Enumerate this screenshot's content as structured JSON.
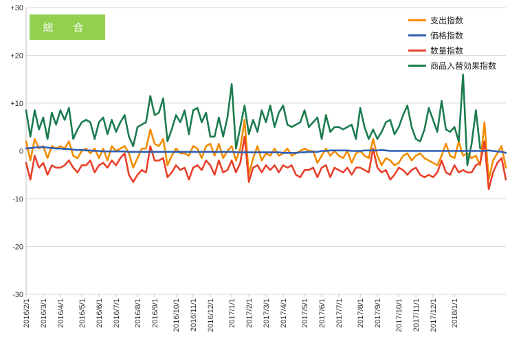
{
  "chart_data": {
    "type": "line",
    "title": "",
    "badge_label": "総 合",
    "xlabel": "",
    "ylabel": "",
    "ylim": [
      -30,
      30
    ],
    "y_ticks": [
      30,
      20,
      10,
      0,
      -10,
      -20,
      -30
    ],
    "y_tick_labels": [
      "+30",
      "+20",
      "+10",
      "0",
      "-10",
      "-20",
      "-30"
    ],
    "x_tick_labels": [
      "2016/2/1",
      "2016/3/1",
      "2016/4/1",
      "2016/5/1",
      "2016/6/1",
      "2016/7/1",
      "2016/8/1",
      "2016/9/1",
      "2016/10/1",
      "2016/11/1",
      "2016/12/1",
      "2017/1/1",
      "2017/2/1",
      "2017/3/1",
      "2017/4/1",
      "2017/5/1",
      "2017/6/1",
      "2017/7/1",
      "2017/8/1",
      "2017/9/1",
      "2017/10/1",
      "2017/11/1",
      "2017/12/1",
      "2018/1/1"
    ],
    "x_tick_week_index": [
      0,
      4,
      8,
      13,
      17,
      21,
      26,
      30,
      35,
      39,
      43,
      48,
      52,
      56,
      60,
      65,
      69,
      73,
      78,
      82,
      87,
      91,
      95,
      100
    ],
    "grid": "horizontal",
    "legend_position": "top-right",
    "series": [
      {
        "name": "支出指数",
        "color": "#f28c00",
        "values": [
          2.0,
          -2.0,
          2.5,
          0.5,
          1.0,
          -1.5,
          1.0,
          0.5,
          1.0,
          0.5,
          2.0,
          -1.0,
          -1.5,
          0.0,
          0.5,
          -0.5,
          0.5,
          -1.5,
          0.5,
          -2.0,
          1.0,
          0.0,
          0.5,
          1.0,
          -0.5,
          -3.5,
          -1.5,
          0.5,
          0.5,
          4.5,
          1.5,
          1.0,
          2.5,
          -3.0,
          -1.0,
          0.5,
          -0.5,
          -0.5,
          -1.0,
          1.0,
          0.5,
          -1.5,
          1.0,
          1.5,
          -1.0,
          1.5,
          -1.5,
          0.0,
          1.0,
          -2.0,
          0.5,
          6.5,
          -5.0,
          -1.5,
          1.0,
          -2.0,
          -0.5,
          -1.0,
          0.5,
          -1.0,
          -0.5,
          0.5,
          -1.0,
          -0.5,
          0.0,
          0.5,
          0.0,
          0.0,
          -2.5,
          -1.0,
          0.5,
          -1.0,
          0.0,
          -1.0,
          -1.5,
          0.0,
          -2.5,
          -0.5,
          0.0,
          -1.0,
          -1.5,
          2.5,
          -1.0,
          -3.0,
          -1.5,
          -2.0,
          -3.0,
          -2.5,
          -1.0,
          -0.5,
          -2.0,
          -1.0,
          -0.5,
          -1.5,
          -2.0,
          -2.5,
          -3.0,
          -1.0,
          1.5,
          -1.0,
          -1.5,
          2.0,
          -1.0,
          -0.5,
          -1.5,
          -1.0,
          -3.0,
          6.0,
          -6.0,
          -2.0,
          -0.5,
          1.0,
          -3.5
        ]
      },
      {
        "name": "価格指数",
        "color": "#2e5fb5",
        "values": [
          0.5,
          0.6,
          0.7,
          0.8,
          0.8,
          0.7,
          0.6,
          0.5,
          0.5,
          0.4,
          0.4,
          0.3,
          0.2,
          0.2,
          0.1,
          0.1,
          0.0,
          0.0,
          -0.1,
          -0.1,
          -0.1,
          -0.1,
          -0.1,
          -0.1,
          -0.2,
          -0.2,
          -0.2,
          -0.2,
          -0.2,
          -0.2,
          -0.2,
          -0.2,
          -0.2,
          -0.2,
          -0.2,
          -0.2,
          -0.2,
          -0.2,
          -0.2,
          -0.2,
          -0.2,
          -0.2,
          -0.2,
          -0.2,
          -0.2,
          -0.2,
          -0.2,
          -0.2,
          -0.2,
          -0.3,
          -0.3,
          -0.3,
          -0.3,
          -0.3,
          -0.3,
          -0.3,
          -0.3,
          -0.3,
          -0.3,
          -0.3,
          -0.4,
          -0.4,
          -0.4,
          -0.4,
          -0.3,
          -0.3,
          -0.2,
          -0.2,
          -0.2,
          0.0,
          0.0,
          0.1,
          0.1,
          0.1,
          0.1,
          0.1,
          0.0,
          0.0,
          0.0,
          0.1,
          0.1,
          0.1,
          0.1,
          0.2,
          0.1,
          0.0,
          0.0,
          0.0,
          0.0,
          0.0,
          0.0,
          0.0,
          0.0,
          0.0,
          0.0,
          0.0,
          0.0,
          0.0,
          0.0,
          0.0,
          0.0,
          0.0,
          0.0,
          0.0,
          0.0,
          0.0,
          0.0,
          0.0,
          0.1,
          0.0,
          -0.1,
          -0.2,
          -0.4
        ]
      },
      {
        "name": "数量指数",
        "color": "#e8402a",
        "values": [
          -2.5,
          -6.0,
          -1.0,
          -3.5,
          -2.5,
          -5.0,
          -3.0,
          -3.5,
          -3.5,
          -3.0,
          -2.0,
          -3.5,
          -4.5,
          -3.0,
          -3.0,
          -2.0,
          -4.5,
          -3.0,
          -2.5,
          -3.5,
          -2.0,
          -3.0,
          -1.5,
          -0.5,
          -5.0,
          -6.5,
          -5.0,
          -4.0,
          -4.5,
          1.0,
          -2.0,
          -2.0,
          -1.5,
          -5.5,
          -4.5,
          -3.0,
          -4.0,
          -3.5,
          -6.0,
          -3.5,
          -3.0,
          -4.0,
          -2.0,
          -3.0,
          -5.0,
          -2.0,
          -4.5,
          -4.0,
          -2.0,
          -4.5,
          -2.5,
          3.0,
          -6.5,
          -3.5,
          -3.0,
          -4.5,
          -3.0,
          -4.0,
          -3.0,
          -4.5,
          -3.0,
          -3.5,
          -3.0,
          -5.0,
          -5.5,
          -4.0,
          -4.0,
          -3.5,
          -5.5,
          -3.5,
          -3.0,
          -5.5,
          -3.5,
          -4.0,
          -4.5,
          -3.5,
          -5.0,
          -3.5,
          -3.5,
          -4.0,
          -4.5,
          0.5,
          -3.5,
          -4.5,
          -4.0,
          -6.0,
          -5.0,
          -3.5,
          -4.0,
          -5.0,
          -4.0,
          -3.5,
          -5.0,
          -5.5,
          -5.0,
          -5.5,
          -4.5,
          -2.0,
          -4.5,
          -5.0,
          -3.0,
          -4.5,
          -4.0,
          -4.5,
          -4.5,
          -3.0,
          -2.5,
          2.0,
          -8.0,
          -4.5,
          -2.5,
          -1.5,
          -6.0
        ]
      },
      {
        "name": "商品入替効果指数",
        "color": "#1b7b4f",
        "values": [
          8.5,
          3.0,
          8.5,
          4.5,
          7.0,
          2.5,
          8.0,
          5.5,
          8.5,
          6.5,
          9.0,
          2.5,
          4.5,
          6.0,
          6.5,
          6.0,
          2.5,
          6.0,
          7.0,
          3.5,
          6.5,
          4.0,
          6.0,
          7.5,
          3.0,
          1.0,
          5.0,
          5.5,
          6.0,
          11.5,
          7.5,
          8.0,
          11.0,
          2.0,
          4.5,
          7.5,
          6.0,
          8.5,
          3.5,
          8.5,
          9.0,
          6.0,
          8.0,
          3.0,
          3.0,
          7.0,
          3.0,
          7.0,
          14.0,
          0.5,
          5.0,
          9.5,
          3.5,
          6.5,
          4.0,
          8.5,
          6.0,
          9.5,
          5.0,
          8.0,
          9.5,
          5.5,
          5.0,
          5.5,
          6.0,
          8.5,
          5.0,
          6.0,
          7.0,
          2.5,
          7.5,
          4.0,
          5.0,
          5.0,
          4.5,
          5.0,
          5.5,
          2.5,
          9.0,
          5.0,
          2.5,
          4.5,
          2.5,
          4.0,
          6.0,
          6.5,
          3.5,
          5.0,
          7.5,
          9.5,
          5.0,
          2.5,
          2.0,
          4.5,
          9.0,
          6.5,
          4.0,
          10.5,
          4.5,
          4.0,
          5.0,
          2.0,
          16.0,
          -3.0,
          1.5,
          8.5,
          0.5
        ]
      }
    ]
  }
}
